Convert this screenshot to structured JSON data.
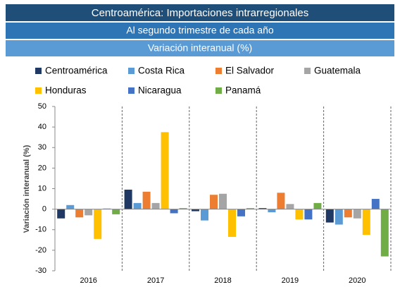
{
  "chart_data": {
    "type": "bar",
    "title": "Centroamérica: Importaciones intrarregionales",
    "subtitle": "Al segundo trimestre de cada año",
    "subtitle2": "Variación interanual (%)",
    "ylabel": "Variación interanual (%)",
    "categories": [
      "2016",
      "2017",
      "2018",
      "2019",
      "2020"
    ],
    "series": [
      {
        "name": "Centroamérica",
        "color": "#1f3864",
        "values": [
          -4.5,
          9.5,
          -1,
          0.5,
          -6.5
        ]
      },
      {
        "name": "Costa Rica",
        "color": "#5b9bd5",
        "values": [
          2,
          3,
          -5.5,
          -1.5,
          -7.5
        ]
      },
      {
        "name": "El Salvador",
        "color": "#ed7d31",
        "values": [
          -4,
          8.5,
          7,
          8,
          -4
        ]
      },
      {
        "name": "Guatemala",
        "color": "#a5a5a5",
        "values": [
          -3,
          3,
          7.5,
          2.5,
          -4.5
        ]
      },
      {
        "name": "Honduras",
        "color": "#ffc000",
        "values": [
          -14.5,
          37.5,
          -13.5,
          -5,
          -12.5
        ]
      },
      {
        "name": "Nicaragua",
        "color": "#4472c4",
        "values": [
          0.3,
          -2,
          -3.5,
          -5,
          5
        ]
      },
      {
        "name": "Panamá",
        "color": "#70ad47",
        "values": [
          -2.5,
          0.5,
          0.5,
          3,
          -23
        ]
      }
    ],
    "ylim": [
      -30,
      50
    ],
    "yticks": [
      -30,
      -20,
      -10,
      0,
      10,
      20,
      30,
      40,
      50
    ]
  }
}
